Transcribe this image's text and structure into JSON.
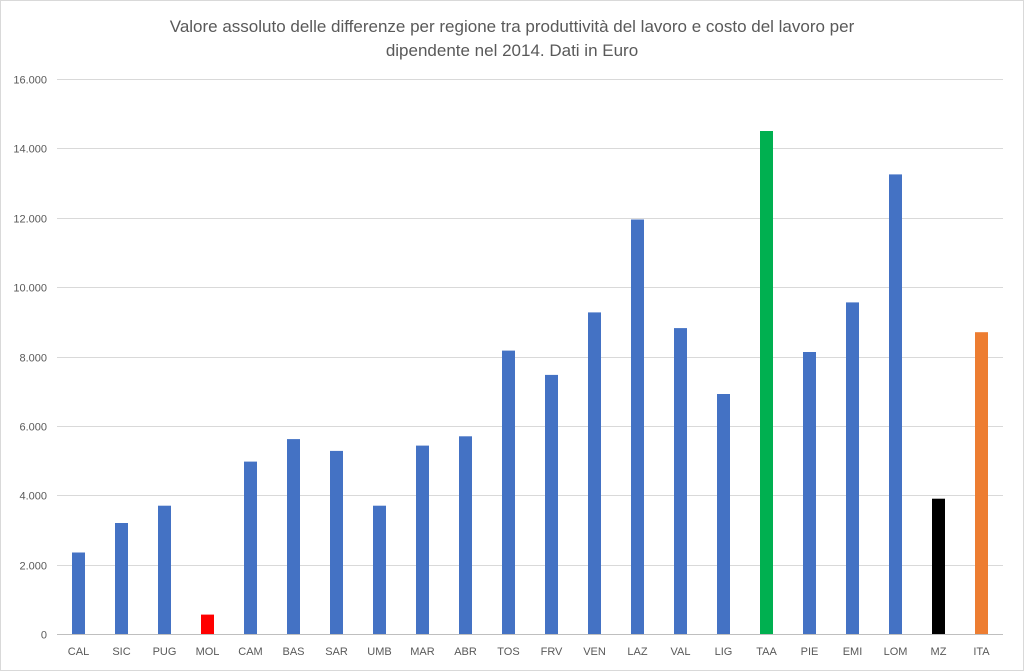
{
  "chart_data": {
    "type": "bar",
    "title": "Valore assoluto delle differenze per regione tra produttività del lavoro e costo del lavoro per dipendente nel 2014. Dati in Euro",
    "title_lines": [
      "Valore assoluto delle differenze per regione tra produttività del lavoro e costo del lavoro per",
      "dipendente nel 2014. Dati in Euro"
    ],
    "xlabel": "",
    "ylabel": "",
    "ylim": [
      0,
      16000
    ],
    "y_ticks": [
      0,
      2000,
      4000,
      6000,
      8000,
      10000,
      12000,
      14000,
      16000
    ],
    "y_tick_labels": [
      "0",
      "2.000",
      "4.000",
      "6.000",
      "8.000",
      "10.000",
      "12.000",
      "14.000",
      "16.000"
    ],
    "grid": true,
    "legend": "none",
    "categories": [
      "CAL",
      "SIC",
      "PUG",
      "MOL",
      "CAM",
      "BAS",
      "SAR",
      "UMB",
      "MAR",
      "ABR",
      "TOS",
      "FRV",
      "VEN",
      "LAZ",
      "VAL",
      "LIG",
      "TAA",
      "PIE",
      "EMI",
      "LOM",
      "MZ",
      "ITA"
    ],
    "values": [
      2350,
      3200,
      3700,
      560,
      4970,
      5620,
      5280,
      3700,
      5430,
      5700,
      8170,
      7470,
      9270,
      11950,
      8820,
      6920,
      14500,
      8130,
      9560,
      13250,
      3900,
      8700
    ],
    "colors": [
      "#4472c4",
      "#4472c4",
      "#4472c4",
      "#ff0000",
      "#4472c4",
      "#4472c4",
      "#4472c4",
      "#4472c4",
      "#4472c4",
      "#4472c4",
      "#4472c4",
      "#4472c4",
      "#4472c4",
      "#4472c4",
      "#4472c4",
      "#4472c4",
      "#00b050",
      "#4472c4",
      "#4472c4",
      "#4472c4",
      "#000000",
      "#ed7d31"
    ]
  }
}
